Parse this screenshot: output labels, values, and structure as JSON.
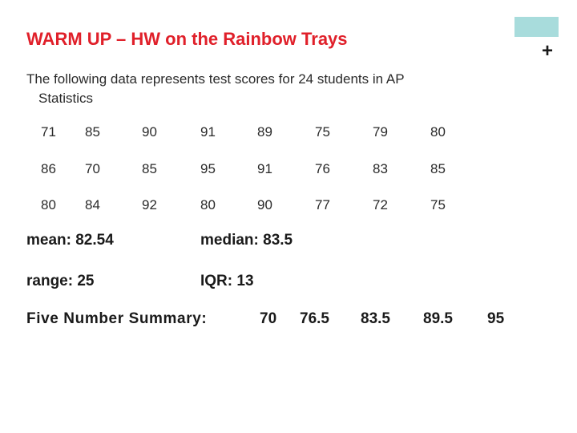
{
  "slide": {
    "title": "WARM UP – HW on the Rainbow Trays",
    "plus": "+",
    "intro_line1": "The following data represents test scores for 24 students in AP",
    "intro_line2": "Statistics",
    "scores": [
      [
        "71",
        "85",
        "90",
        "91",
        "89",
        "75",
        "79",
        "80"
      ],
      [
        "86",
        "70",
        "85",
        "95",
        "91",
        "76",
        "83",
        "85"
      ],
      [
        "80",
        "84",
        "92",
        "80",
        "90",
        "77",
        "72",
        "75"
      ]
    ],
    "mean": "mean: 82.54",
    "median": "median: 83.5",
    "range": "range: 25",
    "iqr": "IQR: 13",
    "five_number_label": "Five Number Summary:",
    "five_number_values": [
      "70",
      "76.5",
      "83.5",
      "89.5",
      "95"
    ]
  },
  "colors": {
    "title": "#e0202a",
    "accent": "#a8dcdc"
  }
}
